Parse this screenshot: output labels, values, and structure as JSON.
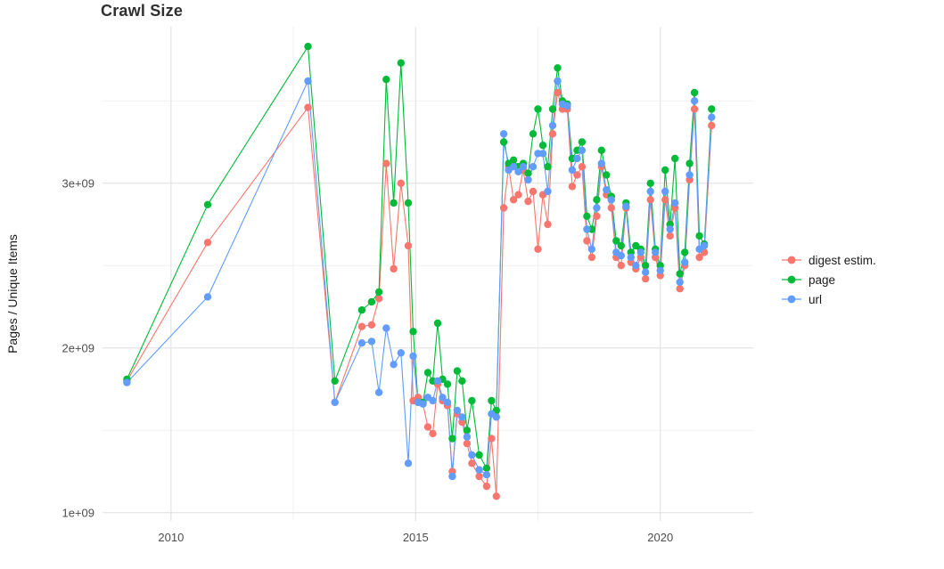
{
  "title": "Crawl Size",
  "chart_data": {
    "type": "line",
    "title": "Crawl Size",
    "xlabel": "",
    "ylabel": "Pages / Unique Items",
    "legend_position": "right",
    "grid": true,
    "background": "#ffffff",
    "gridline_major_color": "#e4e4e4",
    "gridline_minor_color": "#f1f1f1",
    "tick_label_color": "#4d4d4d",
    "xlim": [
      2008.6,
      2021.9
    ],
    "ylim_billions": [
      0.95,
      3.95
    ],
    "x_major_ticks": [
      2010,
      2015,
      2020
    ],
    "x_tick_labels": [
      "2010",
      "2015",
      "2020"
    ],
    "x_minor_ticks": [
      2012.5,
      2017.5
    ],
    "y_major_ticks_billions": [
      1,
      2,
      3
    ],
    "y_tick_labels": [
      "1e+09",
      "2e+09",
      "3e+09"
    ],
    "y_minor_ticks_billions": [
      1.5,
      2.5,
      3.5
    ],
    "y_unit": "pages / unique items (count)",
    "x": [
      2009.1,
      2010.75,
      2012.8,
      2013.35,
      2013.9,
      2014.1,
      2014.25,
      2014.4,
      2014.55,
      2014.7,
      2014.85,
      2014.95,
      2015.05,
      2015.15,
      2015.25,
      2015.35,
      2015.45,
      2015.55,
      2015.65,
      2015.75,
      2015.85,
      2015.95,
      2016.05,
      2016.15,
      2016.3,
      2016.45,
      2016.55,
      2016.65,
      2016.8,
      2016.9,
      2017.0,
      2017.1,
      2017.2,
      2017.3,
      2017.4,
      2017.5,
      2017.6,
      2017.7,
      2017.8,
      2017.9,
      2018.0,
      2018.1,
      2018.2,
      2018.3,
      2018.4,
      2018.5,
      2018.6,
      2018.7,
      2018.8,
      2018.9,
      2019.0,
      2019.1,
      2019.2,
      2019.3,
      2019.4,
      2019.5,
      2019.6,
      2019.7,
      2019.8,
      2019.9,
      2020.0,
      2020.1,
      2020.2,
      2020.3,
      2020.4,
      2020.5,
      2020.6,
      2020.7,
      2020.8,
      2020.9,
      2021.05
    ],
    "series": [
      {
        "name": "digest estim.",
        "color": "#F8766D",
        "values_billions": [
          1.8,
          2.64,
          3.46,
          1.67,
          2.13,
          2.14,
          2.3,
          3.12,
          2.48,
          3.0,
          2.62,
          1.68,
          1.7,
          1.66,
          1.52,
          1.48,
          1.78,
          1.68,
          1.65,
          1.25,
          1.6,
          1.55,
          1.42,
          1.3,
          1.22,
          1.16,
          1.45,
          1.1,
          2.85,
          3.1,
          2.9,
          2.93,
          3.08,
          2.89,
          2.95,
          2.6,
          2.93,
          2.75,
          3.3,
          3.55,
          3.45,
          3.45,
          2.98,
          3.05,
          3.1,
          2.65,
          2.55,
          2.8,
          3.1,
          2.93,
          2.85,
          2.55,
          2.5,
          2.85,
          2.52,
          2.48,
          2.55,
          2.42,
          2.9,
          2.55,
          2.44,
          2.9,
          2.68,
          2.85,
          2.36,
          2.5,
          3.02,
          3.45,
          2.55,
          2.58,
          3.35
        ]
      },
      {
        "name": "page",
        "color": "#00BA38",
        "values_billions": [
          1.81,
          2.87,
          3.83,
          1.8,
          2.23,
          2.28,
          2.34,
          3.63,
          2.88,
          3.73,
          2.88,
          2.1,
          1.67,
          1.67,
          1.85,
          1.8,
          2.15,
          1.81,
          1.78,
          1.45,
          1.86,
          1.8,
          1.5,
          1.68,
          1.35,
          1.27,
          1.68,
          1.62,
          3.25,
          3.12,
          3.14,
          3.1,
          3.12,
          3.06,
          3.3,
          3.45,
          3.23,
          3.1,
          3.45,
          3.7,
          3.5,
          3.48,
          3.15,
          3.2,
          3.25,
          2.8,
          2.72,
          2.9,
          3.2,
          3.05,
          2.92,
          2.65,
          2.62,
          2.88,
          2.58,
          2.62,
          2.6,
          2.5,
          3.0,
          2.6,
          2.5,
          3.08,
          2.75,
          3.15,
          2.45,
          2.58,
          3.12,
          3.55,
          2.68,
          2.63,
          3.45
        ]
      },
      {
        "name": "url",
        "color": "#619CFF",
        "values_billions": [
          1.79,
          2.31,
          3.62,
          1.67,
          2.03,
          2.04,
          1.73,
          2.12,
          1.9,
          1.97,
          1.3,
          1.95,
          1.67,
          1.66,
          1.7,
          1.68,
          1.8,
          1.7,
          1.67,
          1.22,
          1.62,
          1.58,
          1.46,
          1.35,
          1.26,
          1.23,
          1.6,
          1.58,
          3.3,
          3.08,
          3.1,
          3.07,
          3.1,
          3.02,
          3.1,
          3.18,
          3.18,
          2.95,
          3.35,
          3.62,
          3.48,
          3.47,
          3.08,
          3.15,
          3.2,
          2.72,
          2.6,
          2.85,
          3.12,
          2.96,
          2.9,
          2.58,
          2.56,
          2.86,
          2.55,
          2.5,
          2.58,
          2.46,
          2.95,
          2.58,
          2.47,
          2.95,
          2.72,
          2.88,
          2.4,
          2.52,
          3.05,
          3.5,
          2.6,
          2.62,
          3.4
        ]
      }
    ]
  }
}
